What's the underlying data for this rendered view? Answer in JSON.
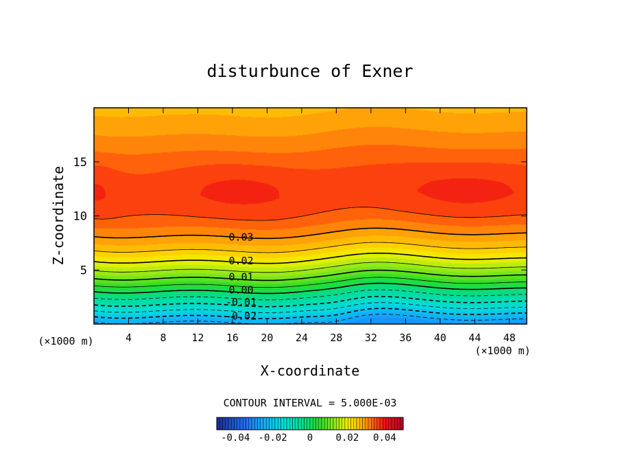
{
  "chart_data": {
    "type": "heatmap",
    "subtype": "filled-contour",
    "title": "disturbunce of Exner",
    "xlabel": "X-coordinate",
    "ylabel": "Z-coordinate",
    "x_unit": "(×1000 m)",
    "y_unit": "(×1000 m)",
    "xlim": [
      0,
      50
    ],
    "ylim": [
      0,
      20
    ],
    "x_ticks": [
      4,
      8,
      12,
      16,
      20,
      24,
      28,
      32,
      36,
      40,
      44,
      48
    ],
    "y_ticks": [
      5,
      10,
      15
    ],
    "contour_interval_label": "CONTOUR INTERVAL = 5.000E-03",
    "contour_labels": [
      {
        "text": "0.03",
        "x": 17.0,
        "z": 8.1
      },
      {
        "text": "0.02",
        "x": 17.0,
        "z": 5.9
      },
      {
        "text": "0.01",
        "x": 17.0,
        "z": 4.4
      },
      {
        "text": "0.00",
        "x": 17.0,
        "z": 3.2
      },
      {
        "text": "-0.01",
        "x": 17.0,
        "z": 2.1
      },
      {
        "text": "-0.02",
        "x": 17.0,
        "z": 0.8
      }
    ],
    "colorbar": {
      "min": -0.05,
      "max": 0.05,
      "ticks": [
        -0.04,
        -0.02,
        0,
        0.02,
        0.04
      ],
      "tick_labels": [
        "-0.04",
        "-0.02",
        "0",
        "0.02",
        "0.04"
      ]
    },
    "field_profile": {
      "z": [
        0,
        0.5,
        1,
        2,
        3,
        4,
        5,
        6,
        7,
        8,
        9,
        10,
        11,
        12,
        13,
        14,
        15,
        16,
        17,
        18,
        19,
        20
      ],
      "value": [
        -0.028,
        -0.024,
        -0.019,
        -0.01,
        -0.002,
        0.007,
        0.014,
        0.02,
        0.025,
        0.029,
        0.032,
        0.0345,
        0.0355,
        0.036,
        0.0357,
        0.035,
        0.034,
        0.0325,
        0.031,
        0.0295,
        0.028,
        0.027
      ]
    },
    "colors": {
      "frame": "#000000",
      "background": "#ffffff"
    }
  }
}
